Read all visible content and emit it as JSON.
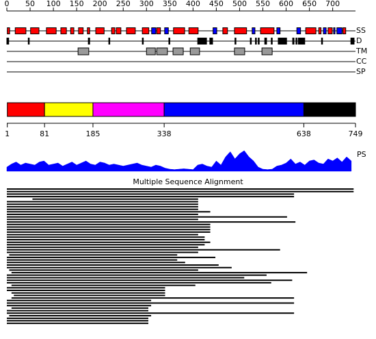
{
  "chart_data": {
    "type": "sequence-features",
    "xlim": [
      0,
      749
    ],
    "xticks": [
      0,
      50,
      100,
      150,
      200,
      250,
      300,
      350,
      400,
      450,
      500,
      550,
      600,
      650,
      700
    ],
    "tracks": [
      "SS",
      "D",
      "TM",
      "CC",
      "SP"
    ],
    "ss_colors": {
      "H": "#ff0000",
      "E": "#0000ff"
    },
    "ss": [
      [
        1,
        6,
        "H"
      ],
      [
        18,
        41,
        "H"
      ],
      [
        51,
        69,
        "H"
      ],
      [
        85,
        106,
        "H"
      ],
      [
        116,
        128,
        "H"
      ],
      [
        137,
        144,
        "H"
      ],
      [
        154,
        164,
        "H"
      ],
      [
        173,
        178,
        "H"
      ],
      [
        191,
        209,
        "H"
      ],
      [
        225,
        232,
        "H"
      ],
      [
        235,
        245,
        "H"
      ],
      [
        257,
        276,
        "H"
      ],
      [
        291,
        305,
        "H"
      ],
      [
        311,
        320,
        "E"
      ],
      [
        322,
        330,
        "H"
      ],
      [
        339,
        347,
        "E"
      ],
      [
        358,
        382,
        "H"
      ],
      [
        391,
        411,
        "H"
      ],
      [
        443,
        451,
        "E"
      ],
      [
        464,
        474,
        "H"
      ],
      [
        489,
        515,
        "H"
      ],
      [
        527,
        533,
        "E"
      ],
      [
        545,
        574,
        "H"
      ],
      [
        580,
        587,
        "E"
      ],
      [
        623,
        631,
        "E"
      ],
      [
        642,
        664,
        "H"
      ],
      [
        670,
        675,
        "H"
      ],
      [
        680,
        686,
        "E"
      ],
      [
        690,
        699,
        "H"
      ],
      [
        702,
        705,
        "E"
      ],
      [
        709,
        720,
        "E"
      ],
      [
        722,
        728,
        "H"
      ]
    ],
    "disorder": [
      [
        0,
        4
      ],
      [
        46,
        47
      ],
      [
        175,
        178
      ],
      [
        219,
        220
      ],
      [
        291,
        292
      ],
      [
        348,
        349
      ],
      [
        410,
        429
      ],
      [
        436,
        442
      ],
      [
        490,
        491
      ],
      [
        523,
        524
      ],
      [
        534,
        535
      ],
      [
        540,
        541
      ],
      [
        554,
        558
      ],
      [
        568,
        569
      ],
      [
        583,
        601
      ],
      [
        614,
        617
      ],
      [
        621,
        622
      ],
      [
        626,
        640
      ],
      [
        676,
        677
      ],
      [
        739,
        746
      ]
    ],
    "tm": [
      [
        153,
        176
      ],
      [
        300,
        319
      ],
      [
        322,
        345
      ],
      [
        357,
        379
      ],
      [
        394,
        414
      ],
      [
        489,
        511
      ],
      [
        548,
        570
      ]
    ],
    "domain_boundaries": [
      1,
      81,
      185,
      338,
      638,
      749
    ],
    "domain_colors": [
      "#ff0000",
      "#ffff00",
      "#ff00ff",
      "#0000ff",
      "#000000"
    ],
    "ps_label": "PS",
    "ps_color": "#0000ff",
    "ps_ylim": [
      0,
      1
    ],
    "ps_x": [
      0,
      10,
      20,
      30,
      40,
      50,
      60,
      70,
      80,
      90,
      100,
      110,
      120,
      130,
      140,
      150,
      160,
      170,
      180,
      190,
      200,
      210,
      220,
      230,
      240,
      250,
      260,
      270,
      280,
      290,
      300,
      310,
      320,
      330,
      340,
      350,
      360,
      370,
      380,
      390,
      400,
      410,
      420,
      430,
      440,
      450,
      460,
      470,
      480,
      490,
      500,
      510,
      520,
      530,
      540,
      550,
      560,
      570,
      580,
      590,
      600,
      610,
      620,
      630,
      640,
      650,
      660,
      670,
      680,
      690,
      700,
      710,
      720,
      730,
      740
    ],
    "ps_values": [
      0.2,
      0.35,
      0.45,
      0.3,
      0.4,
      0.35,
      0.3,
      0.45,
      0.5,
      0.3,
      0.35,
      0.4,
      0.25,
      0.35,
      0.45,
      0.3,
      0.4,
      0.5,
      0.35,
      0.3,
      0.45,
      0.4,
      0.3,
      0.35,
      0.3,
      0.25,
      0.3,
      0.35,
      0.4,
      0.3,
      0.25,
      0.2,
      0.3,
      0.25,
      0.15,
      0.1,
      0.08,
      0.1,
      0.12,
      0.1,
      0.08,
      0.3,
      0.35,
      0.25,
      0.2,
      0.5,
      0.3,
      0.7,
      0.95,
      0.6,
      0.85,
      1.0,
      0.7,
      0.5,
      0.2,
      0.1,
      0.08,
      0.1,
      0.25,
      0.3,
      0.4,
      0.6,
      0.35,
      0.45,
      0.3,
      0.5,
      0.55,
      0.4,
      0.35,
      0.6,
      0.5,
      0.65,
      0.45,
      0.7,
      0.5
    ],
    "msa_title": "Multiple Sequence Alignment",
    "msa": [
      [
        0,
        745
      ],
      [
        0,
        745
      ],
      [
        0,
        617
      ],
      [
        0,
        617
      ],
      [
        55,
        411
      ],
      [
        0,
        411
      ],
      [
        0,
        411
      ],
      [
        0,
        411
      ],
      [
        0,
        411
      ],
      [
        0,
        437
      ],
      [
        0,
        411
      ],
      [
        0,
        602
      ],
      [
        0,
        411
      ],
      [
        0,
        620
      ],
      [
        0,
        437
      ],
      [
        0,
        437
      ],
      [
        0,
        437
      ],
      [
        0,
        437
      ],
      [
        0,
        411
      ],
      [
        0,
        425
      ],
      [
        0,
        425
      ],
      [
        0,
        437
      ],
      [
        0,
        425
      ],
      [
        0,
        411
      ],
      [
        0,
        587
      ],
      [
        0,
        411
      ],
      [
        5,
        366
      ],
      [
        0,
        448
      ],
      [
        0,
        366
      ],
      [
        0,
        383
      ],
      [
        0,
        455
      ],
      [
        0,
        483
      ],
      [
        5,
        411
      ],
      [
        10,
        645
      ],
      [
        0,
        558
      ],
      [
        0,
        510
      ],
      [
        0,
        613
      ],
      [
        0,
        568
      ],
      [
        10,
        405
      ],
      [
        0,
        340
      ],
      [
        0,
        340
      ],
      [
        10,
        340
      ],
      [
        15,
        340
      ],
      [
        10,
        617
      ],
      [
        0,
        310
      ],
      [
        0,
        617
      ],
      [
        0,
        310
      ],
      [
        10,
        304
      ],
      [
        0,
        304
      ],
      [
        0,
        617
      ],
      [
        5,
        310
      ],
      [
        0,
        304
      ],
      [
        0,
        304
      ],
      [
        0,
        304
      ]
    ]
  }
}
